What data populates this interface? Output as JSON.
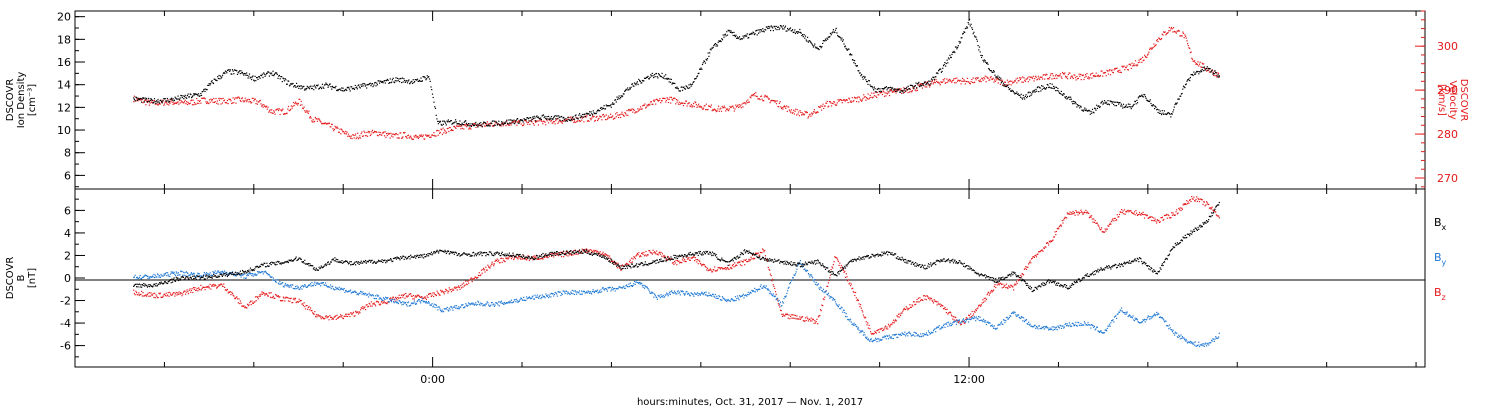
{
  "chart_data": [
    {
      "type": "scatter",
      "panel": "top",
      "ylabel_left": [
        "DSCOVR",
        "Ion Density",
        "[cm⁻³]"
      ],
      "ylabel_right": [
        "DSCOVR",
        "Velocity",
        "[km/s]"
      ],
      "ylim_left": [
        4.8,
        20.5
      ],
      "ylim_right": [
        267.5,
        308
      ],
      "yticks_left": [
        "6",
        "8",
        "10",
        "12",
        "14",
        "16",
        "18",
        "20"
      ],
      "yticks_right": [
        "270",
        "280",
        "290",
        "300"
      ],
      "colors": {
        "left": "#000000",
        "right": "#e41a1c"
      },
      "series": [
        {
          "axis": "left",
          "color": "#000000",
          "x": [
            -6.7,
            -6.3,
            -5.9,
            -5.5,
            -5.2,
            -4.9,
            -4.6,
            -4.3,
            -4.0,
            -3.6,
            -3.2,
            -2.8,
            -2.4,
            -2.0,
            -1.6,
            -1.2,
            -0.8,
            -0.4,
            -0.1,
            0.0,
            0.1,
            0.5,
            1.0,
            1.5,
            2.0,
            2.5,
            3.0,
            3.5,
            4.0,
            4.3,
            4.6,
            4.9,
            5.2,
            5.5,
            5.8,
            6.2,
            6.6,
            6.9,
            7.2,
            7.5,
            7.8,
            8.2,
            8.6,
            9.0,
            9.3,
            9.6,
            9.9,
            10.2,
            10.5,
            10.8,
            11.1,
            11.4,
            11.7,
            12.0,
            12.3,
            12.6,
            12.9,
            13.2,
            13.5,
            13.8,
            14.1,
            14.4,
            14.7,
            15.0,
            15.3,
            15.6,
            15.9,
            16.2,
            16.5,
            16.8,
            17.0,
            17.3,
            17.6
          ],
          "y": [
            12.8,
            12.6,
            12.7,
            13.0,
            13.2,
            14.4,
            15.2,
            15.1,
            14.6,
            15.1,
            14.1,
            13.7,
            14.0,
            13.6,
            13.9,
            14.2,
            14.5,
            14.3,
            14.8,
            13.0,
            10.6,
            10.8,
            10.5,
            10.7,
            10.9,
            11.2,
            11.0,
            11.5,
            12.3,
            13.5,
            14.3,
            14.9,
            14.8,
            13.6,
            14.0,
            17.0,
            18.7,
            18.1,
            18.6,
            19.0,
            19.1,
            18.7,
            17.2,
            18.9,
            17.0,
            14.8,
            13.6,
            13.7,
            13.5,
            14.0,
            14.2,
            15.5,
            17.3,
            19.6,
            16.3,
            14.8,
            13.6,
            12.9,
            13.6,
            14.0,
            13.2,
            12.3,
            11.5,
            12.6,
            12.3,
            12.1,
            13.2,
            11.8,
            11.3,
            13.9,
            15.0,
            15.5,
            14.8
          ]
        },
        {
          "axis": "right",
          "color": "#e41a1c",
          "x": [
            -6.7,
            -6.3,
            -5.9,
            -5.5,
            -5.1,
            -4.7,
            -4.3,
            -3.9,
            -3.6,
            -3.3,
            -3.0,
            -2.7,
            -2.4,
            -2.1,
            -1.8,
            -1.5,
            -1.2,
            -0.9,
            -0.6,
            -0.3,
            0.0,
            0.3,
            0.7,
            1.1,
            1.5,
            2.0,
            2.5,
            3.0,
            3.5,
            4.0,
            4.4,
            4.8,
            5.2,
            5.6,
            6.0,
            6.4,
            6.8,
            7.2,
            7.6,
            8.0,
            8.4,
            8.8,
            9.2,
            9.6,
            10.0,
            10.4,
            10.8,
            11.2,
            11.6,
            12.0,
            12.4,
            12.8,
            13.2,
            13.6,
            14.0,
            14.4,
            14.8,
            15.2,
            15.6,
            15.9,
            16.2,
            16.5,
            16.8,
            17.0,
            17.3,
            17.6
          ],
          "y": [
            288.2,
            287.1,
            287.4,
            287.2,
            287.8,
            287.6,
            287.9,
            287.4,
            285.2,
            285.3,
            287.6,
            283.6,
            282.3,
            280.9,
            279.4,
            280.3,
            280.4,
            279.6,
            279.9,
            279.2,
            280.2,
            281.0,
            281.8,
            282.2,
            282.6,
            282.7,
            282.9,
            283.3,
            283.7,
            284.0,
            285.2,
            286.7,
            288.1,
            287.3,
            286.5,
            285.8,
            286.1,
            289.0,
            287.7,
            285.5,
            284.4,
            286.9,
            287.6,
            288.3,
            289.3,
            289.8,
            290.6,
            291.8,
            292.4,
            292.1,
            292.7,
            291.8,
            292.5,
            292.9,
            293.6,
            293.1,
            293.5,
            294.3,
            295.4,
            297.4,
            301.5,
            304.2,
            302.6,
            297.0,
            295.0,
            293.4
          ]
        }
      ]
    },
    {
      "type": "scatter",
      "panel": "bottom",
      "ylabel_left": [
        "DSCOVR",
        "B",
        "[nT]"
      ],
      "ylim": [
        -7.9,
        7.9
      ],
      "yticks_left": [
        "-6",
        "-4",
        "-2",
        "0",
        "2",
        "4",
        "6"
      ],
      "zero_line": true,
      "legend_placement": "right",
      "legend": [
        {
          "letter": "B",
          "sub": "x",
          "color": "#000000"
        },
        {
          "letter": "B",
          "sub": "y",
          "color": "#1f78d4"
        },
        {
          "letter": "B",
          "sub": "z",
          "color": "#e41a1c"
        }
      ],
      "series": [
        {
          "name": "Bx",
          "color": "#000000",
          "x": [
            -6.7,
            -6.2,
            -5.7,
            -5.2,
            -4.7,
            -4.2,
            -3.8,
            -3.4,
            -3.0,
            -2.6,
            -2.2,
            -1.8,
            -1.4,
            -1.0,
            -0.6,
            -0.2,
            0.2,
            0.6,
            1.0,
            1.4,
            1.8,
            2.2,
            2.6,
            3.0,
            3.4,
            3.8,
            4.2,
            4.6,
            5.0,
            5.4,
            5.8,
            6.2,
            6.6,
            7.0,
            7.4,
            7.8,
            8.2,
            8.6,
            9.0,
            9.4,
            9.8,
            10.2,
            10.6,
            11.0,
            11.4,
            11.8,
            12.2,
            12.6,
            13.0,
            13.4,
            13.8,
            14.2,
            14.6,
            15.0,
            15.4,
            15.8,
            16.2,
            16.6,
            17.0,
            17.3,
            17.6
          ],
          "y": [
            -0.6,
            -0.6,
            0.0,
            0.1,
            0.3,
            0.6,
            1.2,
            1.4,
            1.8,
            0.8,
            1.7,
            1.3,
            1.5,
            1.6,
            1.9,
            2.0,
            2.5,
            2.1,
            2.2,
            2.2,
            2.1,
            1.8,
            2.2,
            2.3,
            2.4,
            2.0,
            1.0,
            1.2,
            1.5,
            1.9,
            2.2,
            2.3,
            1.3,
            2.5,
            1.7,
            1.5,
            1.2,
            1.5,
            0.3,
            1.7,
            2.0,
            2.3,
            1.5,
            1.0,
            1.7,
            1.4,
            0.4,
            -0.2,
            0.5,
            -1.0,
            -0.2,
            -0.8,
            0.2,
            0.9,
            1.2,
            1.7,
            0.4,
            3.0,
            4.2,
            5.0,
            6.8
          ]
        },
        {
          "name": "By",
          "color": "#1f78d4",
          "x": [
            -6.7,
            -6.2,
            -5.7,
            -5.2,
            -4.7,
            -4.2,
            -3.8,
            -3.4,
            -3.0,
            -2.6,
            -2.2,
            -1.8,
            -1.4,
            -1.0,
            -0.6,
            -0.2,
            0.2,
            0.6,
            1.0,
            1.4,
            1.8,
            2.2,
            2.6,
            3.0,
            3.4,
            3.8,
            4.2,
            4.6,
            5.0,
            5.4,
            5.8,
            6.2,
            6.6,
            7.0,
            7.4,
            7.8,
            8.2,
            8.6,
            9.0,
            9.4,
            9.8,
            10.2,
            10.6,
            11.0,
            11.4,
            11.8,
            12.2,
            12.6,
            13.0,
            13.4,
            13.8,
            14.2,
            14.6,
            15.0,
            15.4,
            15.8,
            16.2,
            16.6,
            17.0,
            17.3,
            17.6
          ],
          "y": [
            0.1,
            0.2,
            0.5,
            0.3,
            0.6,
            0.2,
            0.6,
            -0.5,
            -0.8,
            -0.4,
            -0.8,
            -1.2,
            -1.5,
            -1.9,
            -2.3,
            -1.9,
            -2.8,
            -2.5,
            -2.2,
            -2.3,
            -2.0,
            -1.7,
            -1.5,
            -1.2,
            -1.3,
            -1.0,
            -0.9,
            -0.3,
            -1.7,
            -1.2,
            -1.4,
            -1.4,
            -2.0,
            -1.5,
            -0.6,
            -2.3,
            1.5,
            -0.6,
            -2.0,
            -4.1,
            -5.5,
            -5.2,
            -4.9,
            -5.0,
            -4.2,
            -3.8,
            -3.5,
            -4.4,
            -3.0,
            -4.2,
            -4.5,
            -4.1,
            -4.0,
            -4.8,
            -2.8,
            -3.9,
            -3.1,
            -4.9,
            -5.8,
            -5.9,
            -5.0
          ]
        },
        {
          "name": "Bz",
          "color": "#e41a1c",
          "x": [
            -6.7,
            -6.2,
            -5.7,
            -5.2,
            -4.7,
            -4.2,
            -3.8,
            -3.4,
            -3.0,
            -2.6,
            -2.2,
            -1.8,
            -1.4,
            -1.0,
            -0.6,
            -0.2,
            0.2,
            0.6,
            1.0,
            1.4,
            1.8,
            2.2,
            2.6,
            3.0,
            3.4,
            3.8,
            4.2,
            4.6,
            5.0,
            5.4,
            5.8,
            6.2,
            6.6,
            7.0,
            7.4,
            7.8,
            8.2,
            8.6,
            9.0,
            9.4,
            9.8,
            10.2,
            10.6,
            11.0,
            11.4,
            11.8,
            12.2,
            12.6,
            13.0,
            13.4,
            13.8,
            14.2,
            14.6,
            15.0,
            15.4,
            15.8,
            16.2,
            16.6,
            17.0,
            17.3,
            17.6
          ],
          "y": [
            -1.2,
            -1.5,
            -1.4,
            -0.8,
            -0.6,
            -2.6,
            -1.2,
            -1.8,
            -2.0,
            -3.3,
            -3.5,
            -3.2,
            -2.3,
            -2.0,
            -1.5,
            -1.7,
            -1.2,
            -0.8,
            0.3,
            1.5,
            1.9,
            1.8,
            2.0,
            2.2,
            2.5,
            2.3,
            0.9,
            2.1,
            2.4,
            1.4,
            1.8,
            0.8,
            1.0,
            1.5,
            2.5,
            -3.3,
            -3.5,
            -3.8,
            2.0,
            -1.0,
            -4.8,
            -4.2,
            -2.6,
            -1.6,
            -2.5,
            -4.1,
            -2.6,
            -0.5,
            -0.8,
            1.8,
            3.2,
            5.8,
            5.9,
            4.2,
            5.9,
            5.8,
            5.1,
            5.8,
            7.2,
            6.6,
            5.5
          ]
        }
      ]
    }
  ],
  "xaxis": {
    "xlim": [
      -8.0,
      22.2
    ],
    "major_ticks": [
      {
        "x": 0,
        "label": "0:00"
      },
      {
        "x": 12,
        "label": "12:00"
      }
    ],
    "label": "hours:minutes, Oct. 31, 2017 — Nov.  1, 2017"
  }
}
